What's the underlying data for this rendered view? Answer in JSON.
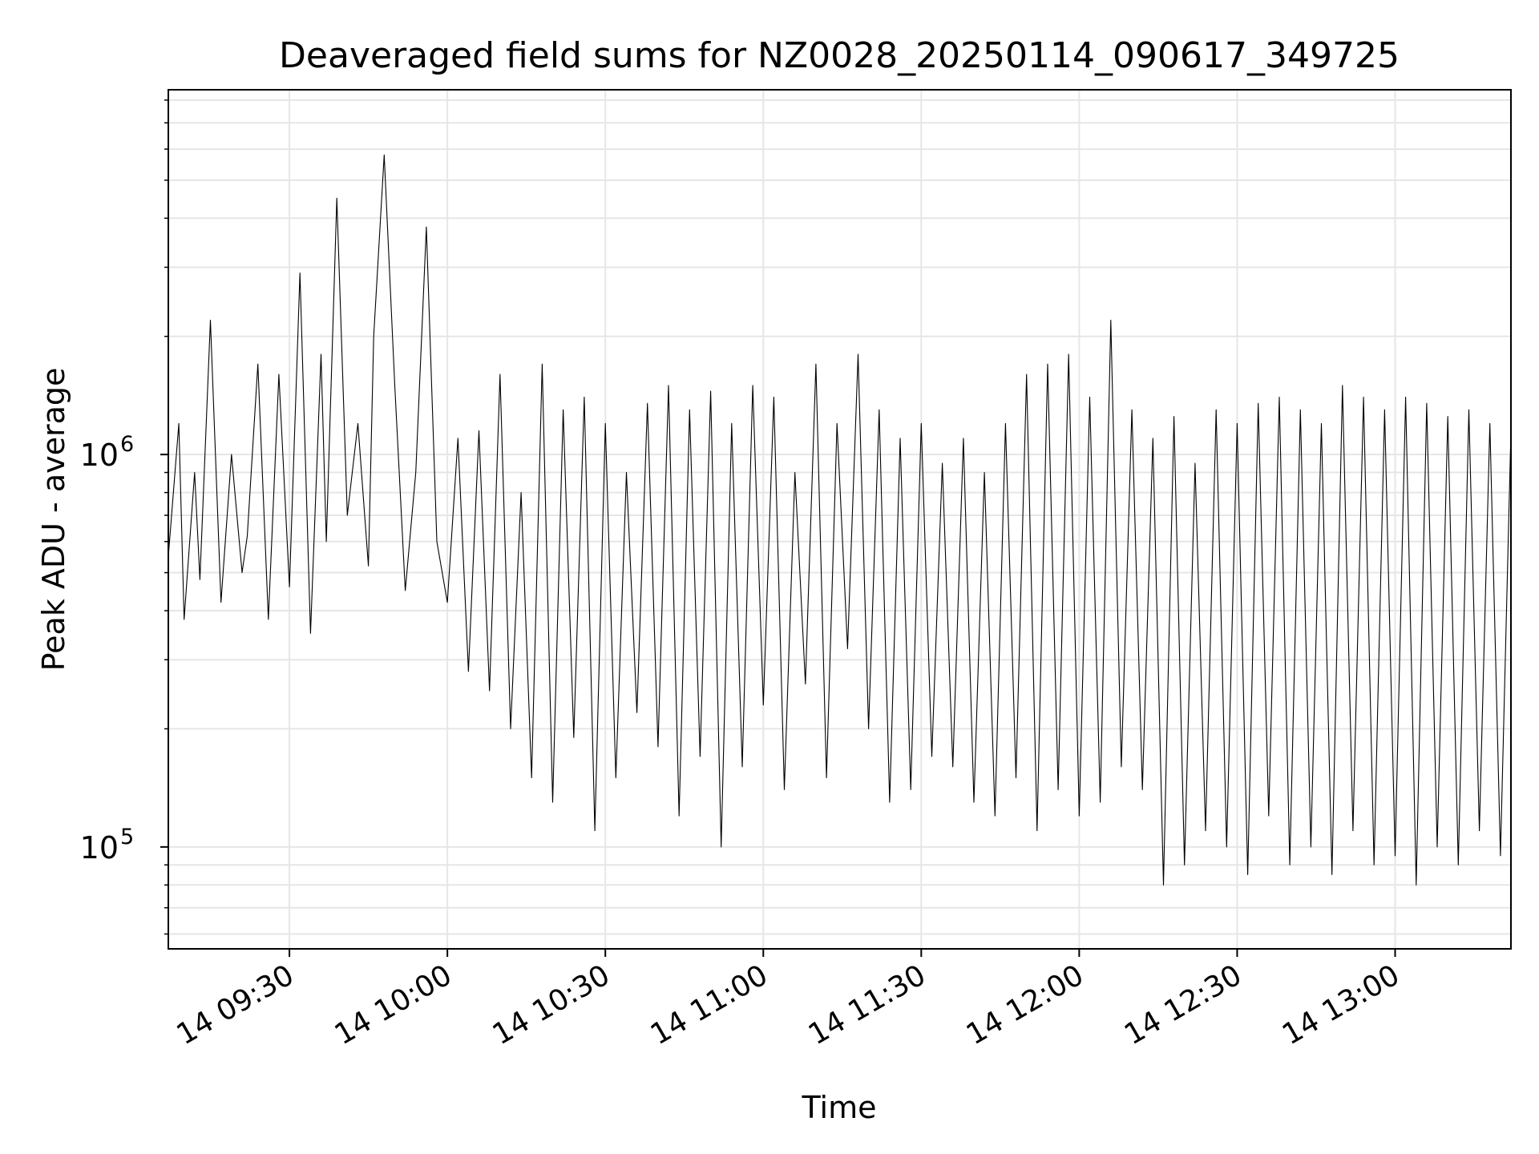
{
  "chart_data": {
    "type": "line",
    "title": "Deaveraged field sums for NZ0028_20250114_090617_349725",
    "xlabel": "Time",
    "ylabel": "Peak ADU - average",
    "y_scale": "log",
    "ylim": [
      55000,
      8500000
    ],
    "xlim": [
      "2025-01-14 09:07",
      "2025-01-14 13:22"
    ],
    "x_ticks": [
      {
        "t": "2025-01-14 09:30",
        "label": "14 09:30"
      },
      {
        "t": "2025-01-14 10:00",
        "label": "14 10:00"
      },
      {
        "t": "2025-01-14 10:30",
        "label": "14 10:30"
      },
      {
        "t": "2025-01-14 11:00",
        "label": "14 11:00"
      },
      {
        "t": "2025-01-14 11:30",
        "label": "14 11:30"
      },
      {
        "t": "2025-01-14 12:00",
        "label": "14 12:00"
      },
      {
        "t": "2025-01-14 12:30",
        "label": "14 12:30"
      },
      {
        "t": "2025-01-14 13:00",
        "label": "14 13:00"
      }
    ],
    "y_ticks": [
      {
        "value": 100000,
        "base": "10",
        "exp": "5"
      },
      {
        "value": 1000000,
        "base": "10",
        "exp": "6"
      }
    ],
    "grid": true,
    "line_color": "#000000",
    "grid_color": "#e6e6e6",
    "series": [
      {
        "x": [
          "2025-01-14 09:07",
          "2025-01-14 09:09",
          "2025-01-14 09:10",
          "2025-01-14 09:12",
          "2025-01-14 09:13",
          "2025-01-14 09:15",
          "2025-01-14 09:17",
          "2025-01-14 09:19",
          "2025-01-14 09:21",
          "2025-01-14 09:22",
          "2025-01-14 09:24",
          "2025-01-14 09:26",
          "2025-01-14 09:28",
          "2025-01-14 09:30",
          "2025-01-14 09:32",
          "2025-01-14 09:34",
          "2025-01-14 09:36",
          "2025-01-14 09:37",
          "2025-01-14 09:39",
          "2025-01-14 09:41",
          "2025-01-14 09:43",
          "2025-01-14 09:45",
          "2025-01-14 09:46",
          "2025-01-14 09:48",
          "2025-01-14 09:50",
          "2025-01-14 09:52",
          "2025-01-14 09:54",
          "2025-01-14 09:56",
          "2025-01-14 09:58",
          "2025-01-14 10:00",
          "2025-01-14 10:02",
          "2025-01-14 10:04",
          "2025-01-14 10:06",
          "2025-01-14 10:08",
          "2025-01-14 10:10",
          "2025-01-14 10:12",
          "2025-01-14 10:14",
          "2025-01-14 10:16",
          "2025-01-14 10:18",
          "2025-01-14 10:20",
          "2025-01-14 10:22",
          "2025-01-14 10:24",
          "2025-01-14 10:26",
          "2025-01-14 10:28",
          "2025-01-14 10:30",
          "2025-01-14 10:32",
          "2025-01-14 10:34",
          "2025-01-14 10:36",
          "2025-01-14 10:38",
          "2025-01-14 10:40",
          "2025-01-14 10:42",
          "2025-01-14 10:44",
          "2025-01-14 10:46",
          "2025-01-14 10:48",
          "2025-01-14 10:50",
          "2025-01-14 10:52",
          "2025-01-14 10:54",
          "2025-01-14 10:56",
          "2025-01-14 10:58",
          "2025-01-14 11:00",
          "2025-01-14 11:02",
          "2025-01-14 11:04",
          "2025-01-14 11:06",
          "2025-01-14 11:08",
          "2025-01-14 11:10",
          "2025-01-14 11:12",
          "2025-01-14 11:14",
          "2025-01-14 11:16",
          "2025-01-14 11:18",
          "2025-01-14 11:20",
          "2025-01-14 11:22",
          "2025-01-14 11:24",
          "2025-01-14 11:26",
          "2025-01-14 11:28",
          "2025-01-14 11:30",
          "2025-01-14 11:32",
          "2025-01-14 11:34",
          "2025-01-14 11:36",
          "2025-01-14 11:38",
          "2025-01-14 11:40",
          "2025-01-14 11:42",
          "2025-01-14 11:44",
          "2025-01-14 11:46",
          "2025-01-14 11:48",
          "2025-01-14 11:50",
          "2025-01-14 11:52",
          "2025-01-14 11:54",
          "2025-01-14 11:56",
          "2025-01-14 11:58",
          "2025-01-14 12:00",
          "2025-01-14 12:02",
          "2025-01-14 12:04",
          "2025-01-14 12:06",
          "2025-01-14 12:08",
          "2025-01-14 12:10",
          "2025-01-14 12:12",
          "2025-01-14 12:14",
          "2025-01-14 12:16",
          "2025-01-14 12:18",
          "2025-01-14 12:20",
          "2025-01-14 12:22",
          "2025-01-14 12:24",
          "2025-01-14 12:26",
          "2025-01-14 12:28",
          "2025-01-14 12:30",
          "2025-01-14 12:32",
          "2025-01-14 12:34",
          "2025-01-14 12:36",
          "2025-01-14 12:38",
          "2025-01-14 12:40",
          "2025-01-14 12:42",
          "2025-01-14 12:44",
          "2025-01-14 12:46",
          "2025-01-14 12:48",
          "2025-01-14 12:50",
          "2025-01-14 12:52",
          "2025-01-14 12:54",
          "2025-01-14 12:56",
          "2025-01-14 12:58",
          "2025-01-14 13:00",
          "2025-01-14 13:02",
          "2025-01-14 13:04",
          "2025-01-14 13:06",
          "2025-01-14 13:08",
          "2025-01-14 13:10",
          "2025-01-14 13:12",
          "2025-01-14 13:14",
          "2025-01-14 13:16",
          "2025-01-14 13:18",
          "2025-01-14 13:20",
          "2025-01-14 13:22"
        ],
        "y": [
          550000,
          1200000,
          380000,
          900000,
          480000,
          2200000,
          420000,
          1000000,
          500000,
          620000,
          1700000,
          380000,
          1600000,
          460000,
          2900000,
          350000,
          1800000,
          600000,
          4500000,
          700000,
          1200000,
          520000,
          2000000,
          5800000,
          1500000,
          450000,
          900000,
          3800000,
          600000,
          420000,
          1100000,
          280000,
          1150000,
          250000,
          1600000,
          200000,
          800000,
          150000,
          1700000,
          130000,
          1300000,
          190000,
          1400000,
          110000,
          1200000,
          150000,
          900000,
          220000,
          1350000,
          180000,
          1500000,
          120000,
          1300000,
          170000,
          1450000,
          100000,
          1200000,
          160000,
          1500000,
          230000,
          1400000,
          140000,
          900000,
          260000,
          1700000,
          150000,
          1200000,
          320000,
          1800000,
          200000,
          1300000,
          130000,
          1100000,
          140000,
          1200000,
          170000,
          950000,
          160000,
          1100000,
          130000,
          900000,
          120000,
          1200000,
          150000,
          1600000,
          110000,
          1700000,
          140000,
          1800000,
          120000,
          1400000,
          130000,
          2200000,
          160000,
          1300000,
          140000,
          1100000,
          80000,
          1250000,
          90000,
          950000,
          110000,
          1300000,
          100000,
          1200000,
          85000,
          1350000,
          120000,
          1400000,
          90000,
          1300000,
          100000,
          1200000,
          85000,
          1500000,
          110000,
          1400000,
          90000,
          1300000,
          95000,
          1400000,
          80000,
          1350000,
          100000,
          1250000,
          90000,
          1300000,
          110000,
          1200000,
          95000,
          1150000
        ]
      }
    ]
  }
}
